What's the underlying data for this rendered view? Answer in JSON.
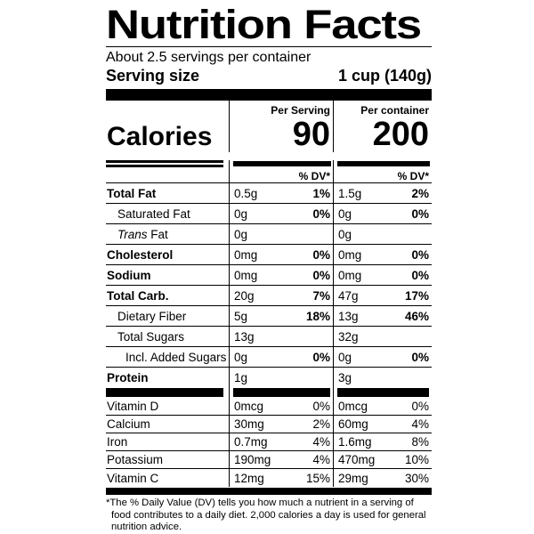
{
  "colors": {
    "ink": "#000000",
    "background": "#ffffff"
  },
  "label": {
    "title": "Nutrition Facts",
    "servings_per_container": "About 2.5 servings per container",
    "serving_size": {
      "label": "Serving size",
      "value": "1 cup (140g)"
    },
    "columns": {
      "per_serving_header": "Per Serving",
      "per_container_header": "Per container",
      "dv_header": "% DV*"
    },
    "calories": {
      "label": "Calories",
      "per_serving": "90",
      "per_container": "200"
    },
    "nutrients": [
      {
        "name": "Total Fat",
        "serving_amount": "0.5g",
        "serving_dv": "1%",
        "container_amount": "1.5g",
        "container_dv": "2%"
      },
      {
        "name": "Saturated Fat",
        "serving_amount": "0g",
        "serving_dv": "0%",
        "container_amount": "0g",
        "container_dv": "0%"
      },
      {
        "name_italic": "Trans",
        "name_rest": " Fat",
        "serving_amount": "0g",
        "serving_dv": "",
        "container_amount": "0g",
        "container_dv": ""
      },
      {
        "name": "Cholesterol",
        "serving_amount": "0mg",
        "serving_dv": "0%",
        "container_amount": "0mg",
        "container_dv": "0%"
      },
      {
        "name": "Sodium",
        "serving_amount": "0mg",
        "serving_dv": "0%",
        "container_amount": "0mg",
        "container_dv": "0%"
      },
      {
        "name": "Total Carb.",
        "serving_amount": "20g",
        "serving_dv": "7%",
        "container_amount": "47g",
        "container_dv": "17%"
      },
      {
        "name": "Dietary Fiber",
        "serving_amount": "5g",
        "serving_dv": "18%",
        "container_amount": "13g",
        "container_dv": "46%"
      },
      {
        "name": "Total Sugars",
        "serving_amount": "13g",
        "serving_dv": "",
        "container_amount": "32g",
        "container_dv": ""
      },
      {
        "name": "Incl. Added Sugars",
        "serving_amount": "0g",
        "serving_dv": "0%",
        "container_amount": "0g",
        "container_dv": "0%"
      },
      {
        "name": "Protein",
        "serving_amount": "1g",
        "serving_dv": "",
        "container_amount": "3g",
        "container_dv": ""
      }
    ],
    "vitamins": [
      {
        "name": "Vitamin D",
        "serving_amount": "0mcg",
        "serving_dv": "0%",
        "container_amount": "0mcg",
        "container_dv": "0%"
      },
      {
        "name": "Calcium",
        "serving_amount": "30mg",
        "serving_dv": "2%",
        "container_amount": "60mg",
        "container_dv": "4%"
      },
      {
        "name": "Iron",
        "serving_amount": "0.7mg",
        "serving_dv": "4%",
        "container_amount": "1.6mg",
        "container_dv": "8%"
      },
      {
        "name": "Potassium",
        "serving_amount": "190mg",
        "serving_dv": "4%",
        "container_amount": "470mg",
        "container_dv": "10%"
      },
      {
        "name": "Vitamin C",
        "serving_amount": "12mg",
        "serving_dv": "15%",
        "container_amount": "29mg",
        "container_dv": "30%"
      }
    ],
    "footnote": "*The % Daily Value (DV) tells you how much a nutrient in a serving of food contributes to a daily diet. 2,000 calories a day is used for general nutrition advice."
  }
}
